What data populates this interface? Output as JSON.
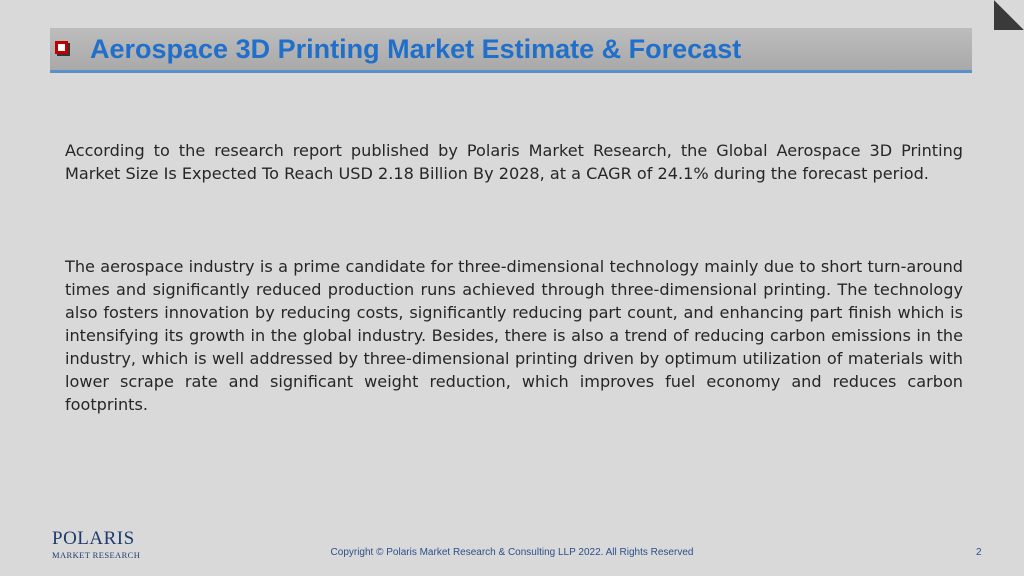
{
  "title": "Aerospace 3D Printing Market Estimate & Forecast",
  "paragraphs": [
    "According to the research report published by Polaris Market Research, the Global Aerospace 3D Printing Market Size Is Expected To Reach USD 2.18 Billion By 2028, at a CAGR of 24.1% during the forecast period.",
    "The aerospace industry is a prime candidate for three-dimensional technology mainly due to short turn-around times and significantly reduced production runs achieved through three-dimensional printing. The technology also fosters innovation by reducing costs, significantly reducing part count, and enhancing part finish which is intensifying its growth in the global industry. Besides, there is also a trend of reducing carbon emissions in the industry, which is well addressed by three-dimensional printing driven by optimum utilization of materials with lower scrape rate and significant weight reduction, which improves fuel economy and reduces carbon footprints."
  ],
  "logo": {
    "main": "POLARIS",
    "sub": "MARKET RESEARCH"
  },
  "footer": {
    "copyright": "Copyright © Polaris Market Research & Consulting LLP 2022. All Rights Reserved",
    "page_number": "2"
  },
  "colors": {
    "title": "#1f6fcb",
    "bullet": "#c00000",
    "underline": "#5b8fc9",
    "background": "#d9d9d9"
  }
}
